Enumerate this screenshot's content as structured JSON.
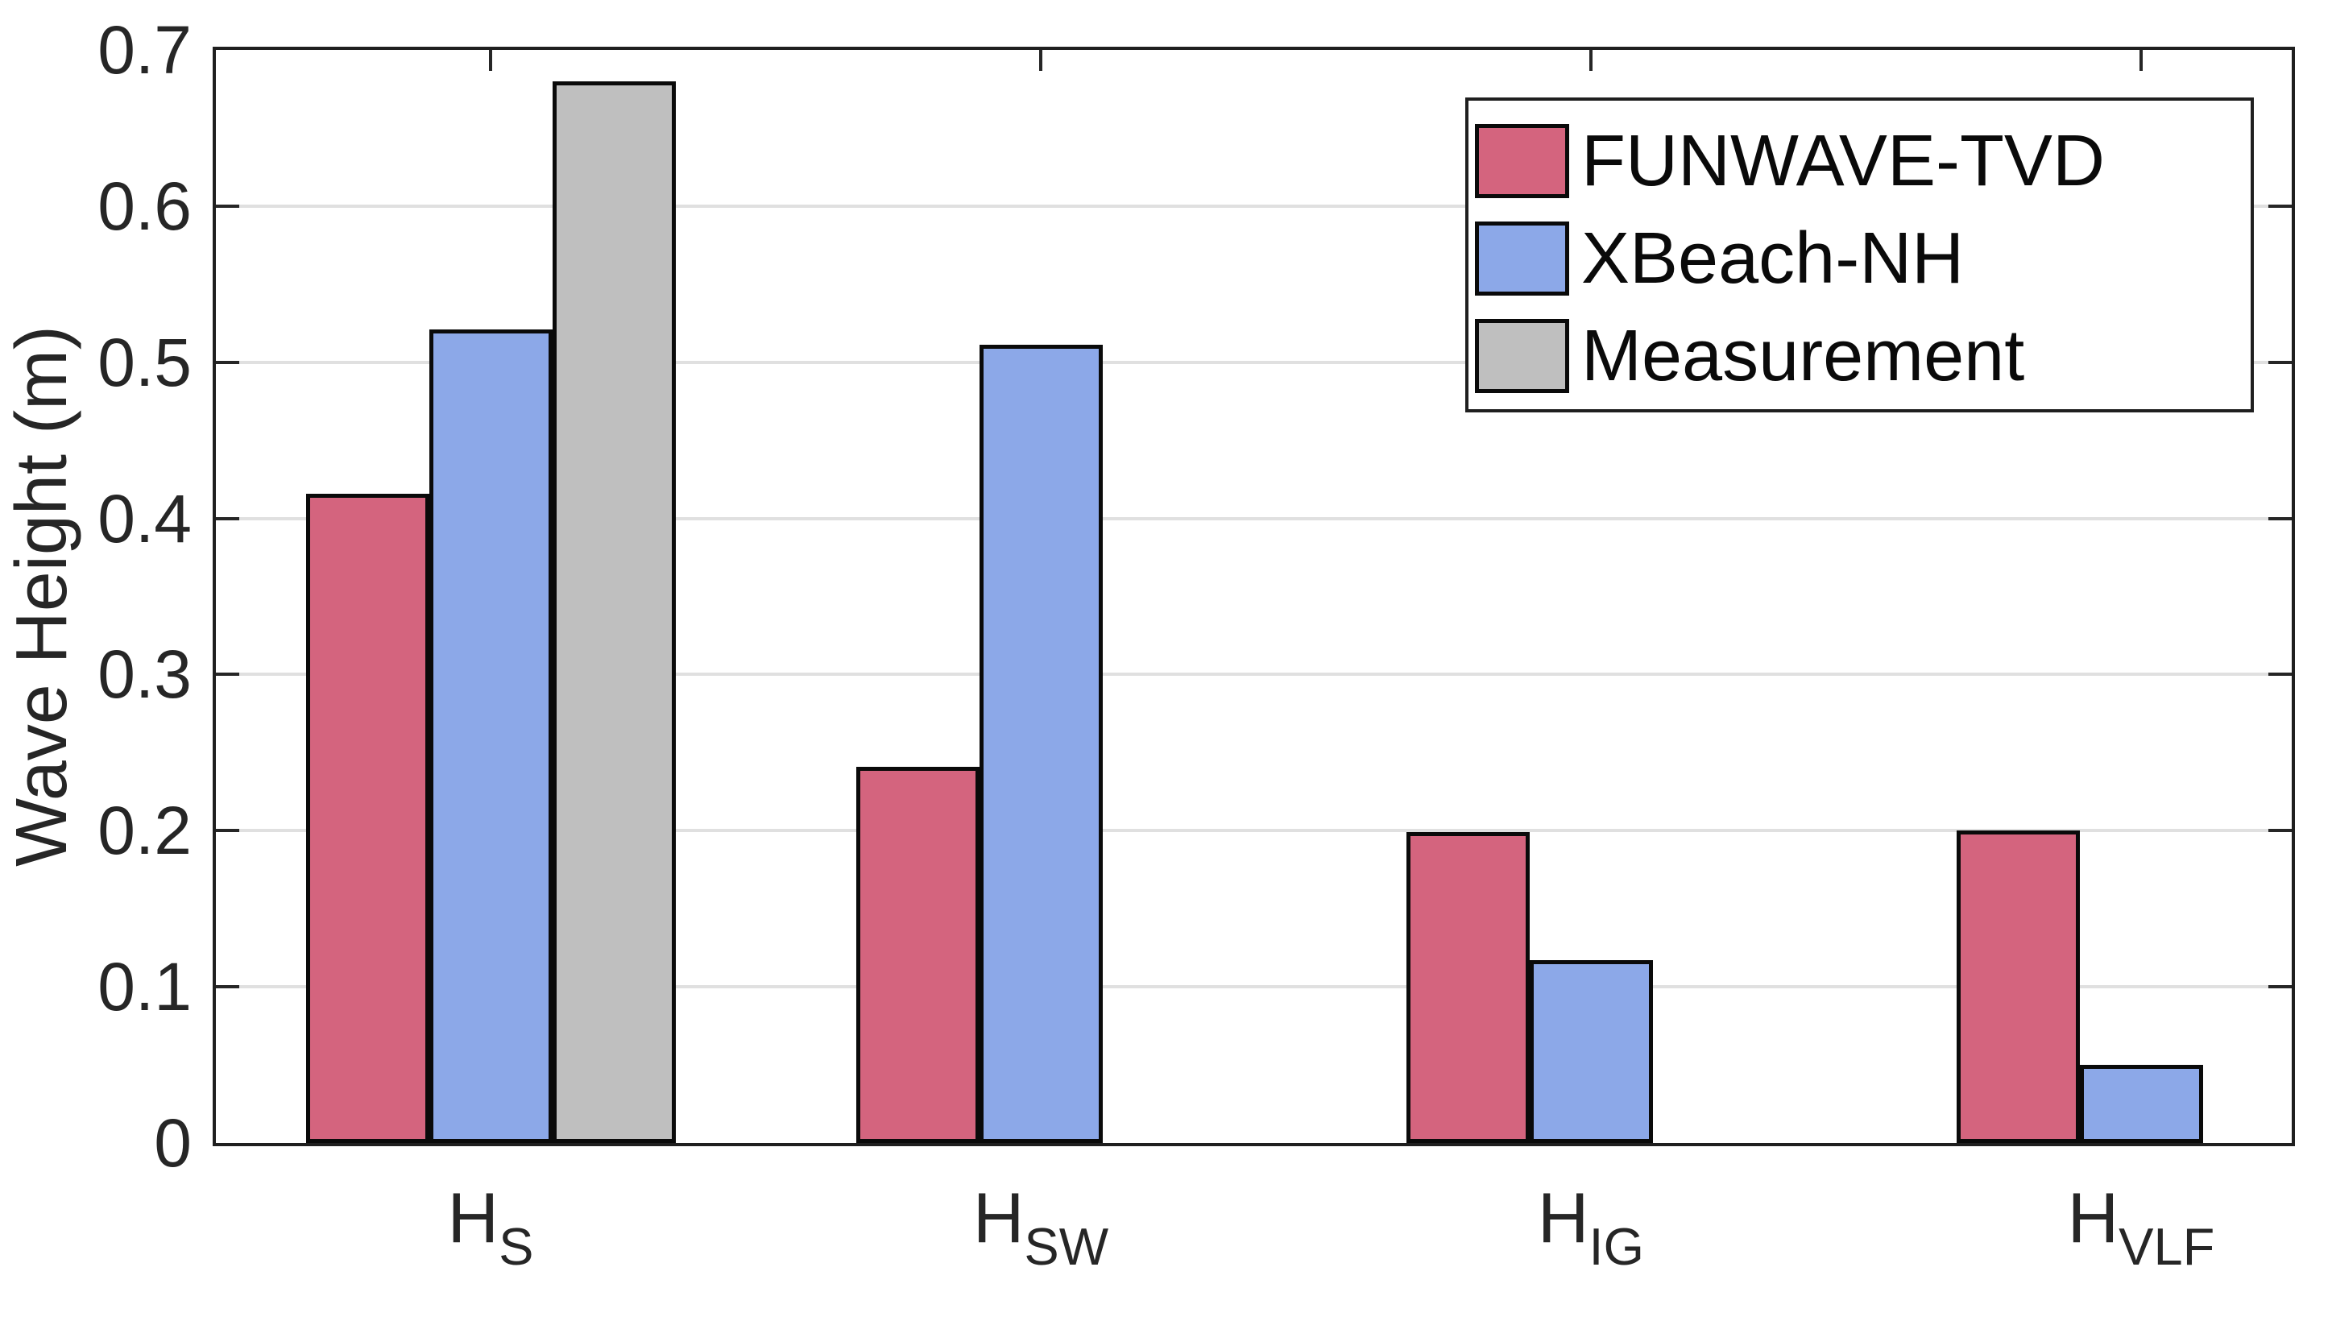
{
  "chart_data": {
    "type": "bar",
    "title": "",
    "ylabel": "Wave Height (m)",
    "xlabel": "",
    "ylim": [
      0,
      0.7
    ],
    "ytick_labels": [
      "0",
      "0.1",
      "0.2",
      "0.3",
      "0.4",
      "0.5",
      "0.6",
      "0.7"
    ],
    "grid": "horizontal",
    "grid_color": "#e0e0e0",
    "axis_color": "#262626",
    "bar_edge_color": "#0a0a0a",
    "legend_position": "top-right",
    "categories": [
      {
        "base": "H",
        "sub": "S"
      },
      {
        "base": "H",
        "sub": "SW"
      },
      {
        "base": "H",
        "sub": "IG"
      },
      {
        "base": "H",
        "sub": "VLF"
      }
    ],
    "series": [
      {
        "name": "FUNWAVE-TVD",
        "color": "#d4647e",
        "values": [
          0.416,
          0.241,
          0.199,
          0.2
        ]
      },
      {
        "name": "XBeach-NH",
        "color": "#8ca8e8",
        "values": [
          0.521,
          0.511,
          0.117,
          0.05
        ]
      },
      {
        "name": "Measurement",
        "color": "#bfbfbf",
        "values": [
          0.68,
          null,
          null,
          null
        ]
      }
    ]
  }
}
